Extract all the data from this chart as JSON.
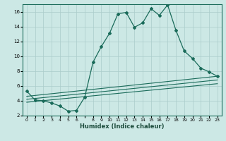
{
  "xlabel": "Humidex (Indice chaleur)",
  "bg_color": "#cce8e5",
  "grid_color": "#aaccca",
  "line_color": "#1a6b5a",
  "xlim": [
    -0.5,
    23.5
  ],
  "ylim": [
    2,
    17
  ],
  "yticks": [
    2,
    4,
    6,
    8,
    10,
    12,
    14,
    16
  ],
  "xticks": [
    0,
    1,
    2,
    3,
    4,
    5,
    6,
    8,
    9,
    10,
    11,
    12,
    13,
    14,
    15,
    16,
    17,
    18,
    19,
    20,
    21,
    22,
    23
  ],
  "main_x": [
    0,
    1,
    2,
    3,
    4,
    5,
    6,
    7,
    8,
    9,
    10,
    11,
    12,
    13,
    14,
    15,
    16,
    17,
    18,
    19,
    20,
    21,
    22,
    23
  ],
  "main_y": [
    5.3,
    4.1,
    4.0,
    3.7,
    3.3,
    2.6,
    2.7,
    4.5,
    9.2,
    11.3,
    13.1,
    15.7,
    15.9,
    13.9,
    14.5,
    16.4,
    15.5,
    16.9,
    13.5,
    10.7,
    9.7,
    8.4,
    7.9,
    7.3
  ],
  "line2_x": [
    0,
    23
  ],
  "line2_y": [
    4.6,
    7.3
  ],
  "line3_x": [
    0,
    23
  ],
  "line3_y": [
    4.2,
    6.8
  ],
  "line4_x": [
    0,
    23
  ],
  "line4_y": [
    3.8,
    6.3
  ]
}
